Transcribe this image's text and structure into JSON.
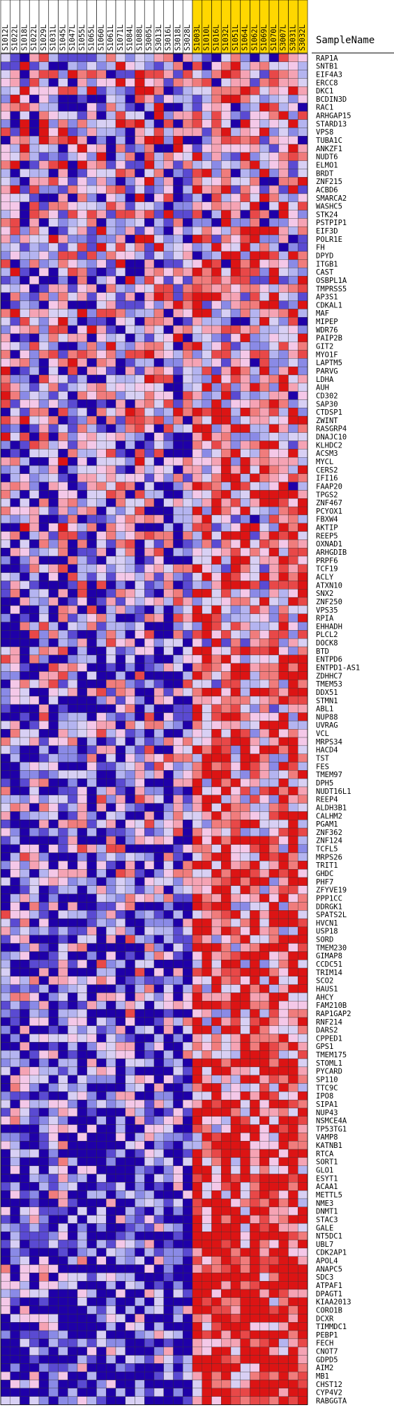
{
  "chart_data": {
    "type": "heatmap",
    "title": "",
    "row_header": "SampleName",
    "columns": [
      {
        "name": "S1012L",
        "group": "white"
      },
      {
        "name": "S1022L",
        "group": "white"
      },
      {
        "name": "S1018L",
        "group": "white"
      },
      {
        "name": "S1022L",
        "group": "white"
      },
      {
        "name": "S1029L",
        "group": "white"
      },
      {
        "name": "S1031L",
        "group": "white"
      },
      {
        "name": "S1045L",
        "group": "white"
      },
      {
        "name": "S1047L",
        "group": "white"
      },
      {
        "name": "S1055L",
        "group": "white"
      },
      {
        "name": "S1065L",
        "group": "white"
      },
      {
        "name": "S1060L",
        "group": "white"
      },
      {
        "name": "S1061L",
        "group": "white"
      },
      {
        "name": "S1071L",
        "group": "white"
      },
      {
        "name": "S1084L",
        "group": "white"
      },
      {
        "name": "S1088L",
        "group": "white"
      },
      {
        "name": "S3005L",
        "group": "white"
      },
      {
        "name": "S3013L",
        "group": "white"
      },
      {
        "name": "S3016L",
        "group": "white"
      },
      {
        "name": "S3018L",
        "group": "white"
      },
      {
        "name": "S3028L",
        "group": "white"
      },
      {
        "name": "S1003L",
        "group": "yellow"
      },
      {
        "name": "S1010L",
        "group": "yellow"
      },
      {
        "name": "S1016L",
        "group": "yellow"
      },
      {
        "name": "S1032L",
        "group": "yellow"
      },
      {
        "name": "S1051L",
        "group": "yellow"
      },
      {
        "name": "S1064L",
        "group": "yellow"
      },
      {
        "name": "S1062L",
        "group": "yellow"
      },
      {
        "name": "S1069L",
        "group": "yellow"
      },
      {
        "name": "S1070L",
        "group": "yellow"
      },
      {
        "name": "S3007L",
        "group": "yellow"
      },
      {
        "name": "S3031L",
        "group": "yellow"
      },
      {
        "name": "S3032L",
        "group": "yellow"
      }
    ],
    "rows": [
      "RAP1A",
      "SNTB1",
      "EIF4A3",
      "ERCC8",
      "DKC1",
      "BCDIN3D",
      "RAC1",
      "ARHGAP15",
      "STARD13",
      "VPS8",
      "TUBA1C",
      "ANKZF1",
      "NUDT6",
      "ELMO1",
      "BRDT",
      "ZNF215",
      "ACBD6",
      "SMARCA2",
      "WASHC5",
      "STK24",
      "PSTPIP1",
      "EIF3D",
      "POLR1E",
      "FH",
      "DPYD",
      "ITGB1",
      "CAST",
      "OSBPL1A",
      "TMPRSS5",
      "AP3S1",
      "CDKAL1",
      "MAF",
      "MIPEP",
      "WDR76",
      "PAIP2B",
      "GIT2",
      "MYO1F",
      "LAPTM5",
      "PARVG",
      "LDHA",
      "AUH",
      "CD302",
      "SAP30",
      "CTDSP1",
      "ZWINT",
      "RASGRP4",
      "DNAJC10",
      "KLHDC2",
      "ACSM3",
      "MYCL",
      "CERS2",
      "IFI16",
      "FAAP20",
      "TPGS2",
      "ZNF467",
      "PCYOX1",
      "FBXW4",
      "AKTIP",
      "REEP5",
      "OXNAD1",
      "ARHGDIB",
      "PRPF6",
      "TCF19",
      "ACLY",
      "ATXN10",
      "SNX2",
      "ZNF250",
      "VPS35",
      "RPIA",
      "EHHADH",
      "PLCL2",
      "DOCK8",
      "BTD",
      "ENTPD6",
      "ENTPD1-AS1",
      "ZDHHC7",
      "TMEM53",
      "DDX51",
      "STMN1",
      "ABL1",
      "NUP88",
      "UVRAG",
      "VCL",
      "MRPS34",
      "HACD4",
      "TST",
      "FES",
      "TMEM97",
      "DPH5",
      "NUDT16L1",
      "REEP4",
      "ALDH3B1",
      "CALHM2",
      "PGAM1",
      "ZNF362",
      "ZNF124",
      "TCFL5",
      "MRPS26",
      "TRIT1",
      "GHDC",
      "PHF7",
      "ZFYVE19",
      "PPP1CC",
      "DDRGK1",
      "SPATS2L",
      "HVCN1",
      "USP18",
      "SORD",
      "TMEM230",
      "GIMAP8",
      "CCDC51",
      "TRIM14",
      "SCO2",
      "HAUS1",
      "AHCY",
      "FAM210B",
      "RAP1GAP2",
      "RNF214",
      "DARS2",
      "CPPED1",
      "GPS1",
      "TMEM175",
      "STOML1",
      "PYCARD",
      "SP110",
      "TTC9C",
      "IPO8",
      "SIPA1",
      "NUP43",
      "NSMCE4A",
      "TP53TG1",
      "VAMP8",
      "KATNB1",
      "RTCA",
      "SORT1",
      "GLO1",
      "ESYT1",
      "ACAA1",
      "METTL5",
      "NME3",
      "DNMT1",
      "STAC3",
      "GALE",
      "NT5DC1",
      "UBL7",
      "CDK2AP1",
      "APOL4",
      "ANAPC5",
      "SDC3",
      "ATPAF1",
      "DPAGT1",
      "KIAA2013",
      "CORO1B",
      "DCXR",
      "TIMMDC1",
      "PEBP1",
      "FECH",
      "CNOT7",
      "GDPD5",
      "AIM2",
      "MB1",
      "CHST12",
      "CYP4V2",
      "RABGGTA"
    ],
    "color_scale": {
      "low": "#1f00a8",
      "mid_low": "#b4b4f0",
      "mid": "#f4c8e8",
      "mid_high": "#f07c7c",
      "high": "#dc1414"
    },
    "group_colors": {
      "white": "#ffffff",
      "yellow": "#ffd700"
    },
    "legend": "none",
    "grid": true
  }
}
